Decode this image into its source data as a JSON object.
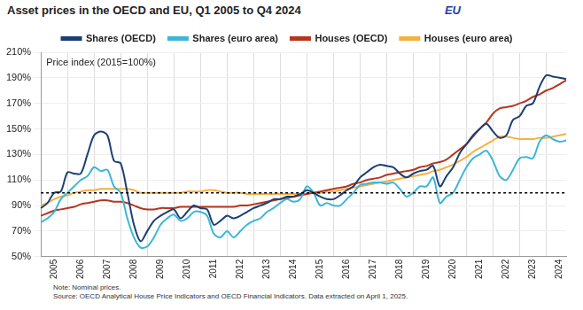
{
  "chart_data": {
    "type": "line",
    "title": "Asset prices in the OECD and EU, Q1 2005 to Q4 2024",
    "logo_text": "EU",
    "annotation": "Price index (2015=100%)",
    "notes": [
      "Note: Nominal prices.",
      "Source: OECD Analytical House Price Indicators and OECD Financial Indicators. Data extracted on April 1, 2025."
    ],
    "legend": "top",
    "grid": true,
    "reference_line": 100,
    "ylim": [
      50,
      210
    ],
    "yticks": [
      {
        "value": 50,
        "label": "50%"
      },
      {
        "value": 70,
        "label": "70%"
      },
      {
        "value": 90,
        "label": "90%"
      },
      {
        "value": 110,
        "label": "110%"
      },
      {
        "value": 130,
        "label": "130%"
      },
      {
        "value": 150,
        "label": "150%"
      },
      {
        "value": 170,
        "label": "170%"
      },
      {
        "value": 190,
        "label": "190%"
      },
      {
        "value": 210,
        "label": "210%"
      }
    ],
    "categories": [
      null,
      null,
      "2005",
      null,
      null,
      null,
      "2006",
      null,
      null,
      null,
      "2007",
      null,
      null,
      null,
      "2008",
      null,
      null,
      null,
      "2009",
      null,
      null,
      null,
      "2010",
      null,
      null,
      null,
      "2011",
      null,
      null,
      null,
      "2012",
      null,
      null,
      null,
      "2013",
      null,
      null,
      null,
      "2014",
      null,
      null,
      null,
      "2015",
      null,
      null,
      null,
      "2016",
      null,
      null,
      null,
      "2017",
      null,
      null,
      null,
      "2018",
      null,
      null,
      null,
      "2019",
      null,
      null,
      null,
      "2020",
      null,
      null,
      null,
      "2021",
      null,
      null,
      null,
      "2022",
      null,
      null,
      null,
      "2023",
      null,
      null,
      null,
      "2024",
      null
    ],
    "series": [
      {
        "name": "Shares (OECD)",
        "color": "#1b3f73",
        "values": [
          88,
          92,
          100,
          101,
          116,
          115,
          115,
          130,
          145,
          148,
          145,
          125,
          123,
          100,
          75,
          62,
          70,
          78,
          82,
          85,
          87,
          80,
          85,
          90,
          88,
          87,
          75,
          78,
          82,
          80,
          82,
          85,
          88,
          90,
          92,
          95,
          95,
          97,
          97,
          99,
          102,
          100,
          97,
          95,
          95,
          98,
          102,
          105,
          112,
          116,
          120,
          122,
          121,
          120,
          115,
          112,
          115,
          117,
          118,
          121,
          105,
          113,
          120,
          131,
          138,
          145,
          150,
          154,
          148,
          143,
          145,
          157,
          160,
          168,
          170,
          183,
          192,
          191,
          190,
          189
        ]
      },
      {
        "name": "Shares (euro area)",
        "color": "#3cb6d6",
        "values": [
          77,
          80,
          85,
          95,
          100,
          105,
          110,
          113,
          120,
          117,
          118,
          105,
          100,
          80,
          65,
          57,
          58,
          65,
          75,
          80,
          83,
          78,
          80,
          85,
          85,
          82,
          68,
          65,
          70,
          65,
          70,
          75,
          78,
          80,
          85,
          88,
          92,
          95,
          93,
          95,
          105,
          100,
          90,
          92,
          90,
          90,
          95,
          100,
          106,
          107,
          108,
          108,
          107,
          108,
          103,
          97,
          100,
          105,
          105,
          112,
          92,
          97,
          100,
          110,
          120,
          127,
          130,
          133,
          125,
          113,
          110,
          118,
          127,
          128,
          127,
          140,
          145,
          142,
          140,
          141
        ]
      },
      {
        "name": "Houses (OECD)",
        "color": "#b5361e",
        "values": [
          82,
          84,
          86,
          87,
          88,
          89,
          91,
          92,
          93,
          94,
          94,
          93,
          93,
          92,
          90,
          88,
          87,
          87,
          88,
          88,
          88,
          89,
          89,
          89,
          89,
          89,
          89,
          89,
          89,
          89,
          90,
          90,
          91,
          92,
          93,
          94,
          95,
          96,
          97,
          98,
          99,
          100,
          101,
          102,
          103,
          104,
          105,
          107,
          108,
          110,
          111,
          112,
          114,
          115,
          116,
          117,
          118,
          120,
          121,
          123,
          124,
          126,
          130,
          134,
          138,
          144,
          150,
          155,
          162,
          166,
          167,
          168,
          170,
          172,
          175,
          177,
          180,
          182,
          185,
          188
        ]
      },
      {
        "name": "Houses (euro area)",
        "color": "#f5b041",
        "values": [
          90,
          92,
          95,
          97,
          98,
          100,
          101,
          102,
          102,
          103,
          103,
          103,
          103,
          103,
          102,
          100,
          100,
          100,
          100,
          100,
          100,
          100,
          101,
          101,
          101,
          102,
          102,
          101,
          100,
          100,
          100,
          99,
          99,
          99,
          99,
          99,
          99,
          99,
          99,
          99,
          99,
          100,
          100,
          101,
          101,
          102,
          103,
          104,
          105,
          106,
          107,
          108,
          109,
          110,
          111,
          112,
          113,
          114,
          115,
          117,
          118,
          120,
          122,
          125,
          128,
          132,
          135,
          138,
          141,
          144,
          144,
          143,
          142,
          142,
          142,
          143,
          143,
          144,
          145,
          146
        ]
      }
    ]
  }
}
